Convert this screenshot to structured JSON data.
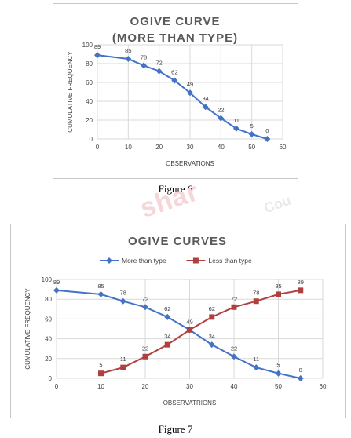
{
  "figure6": {
    "caption": "Figure 6",
    "chart_data": {
      "type": "line",
      "title_lines": [
        "OGIVE CURVE",
        "(MORE THAN TYPE)"
      ],
      "xlabel": "OBSERVATIONS",
      "ylabel": "CUMULATIVE FREQUENCY",
      "xlim": [
        0,
        60
      ],
      "ylim": [
        0,
        100
      ],
      "xticks": [
        0,
        10,
        20,
        30,
        40,
        50,
        60
      ],
      "yticks": [
        0,
        20,
        40,
        60,
        80,
        100
      ],
      "grid": true,
      "legend": "none",
      "series": [
        {
          "color": "#4472c4",
          "marker": "diamond",
          "x": [
            0,
            10,
            15,
            20,
            25,
            30,
            35,
            40,
            45,
            50,
            55
          ],
          "y": [
            89,
            85,
            78,
            72,
            62,
            49,
            34,
            22,
            11,
            5,
            0
          ]
        }
      ]
    }
  },
  "figure7": {
    "caption": "Figure 7",
    "chart_data": {
      "type": "line",
      "title": "OGIVE CURVES",
      "xlabel": "OBSERVATRIONS",
      "ylabel": "CUMULATIVE FREQUENCY",
      "xlim": [
        0,
        60
      ],
      "ylim": [
        0,
        100
      ],
      "xticks": [
        0,
        10,
        20,
        30,
        40,
        50,
        60
      ],
      "yticks": [
        0,
        20,
        40,
        60,
        80,
        100
      ],
      "grid": true,
      "legend": "top",
      "series": [
        {
          "name": "More than type",
          "color": "#4472c4",
          "marker": "diamond",
          "x": [
            0,
            10,
            15,
            20,
            25,
            30,
            35,
            40,
            45,
            50,
            55
          ],
          "y": [
            89,
            85,
            78,
            72,
            62,
            49,
            34,
            22,
            11,
            5,
            0
          ]
        },
        {
          "name": "Less than type",
          "color": "#b0403f",
          "marker": "square",
          "x": [
            10,
            15,
            20,
            25,
            30,
            35,
            40,
            45,
            50,
            55
          ],
          "y": [
            5,
            11,
            22,
            34,
            49,
            62,
            72,
            78,
            85,
            89
          ]
        }
      ]
    }
  },
  "watermark": {
    "text": "shar",
    "secondary": "Cou"
  }
}
